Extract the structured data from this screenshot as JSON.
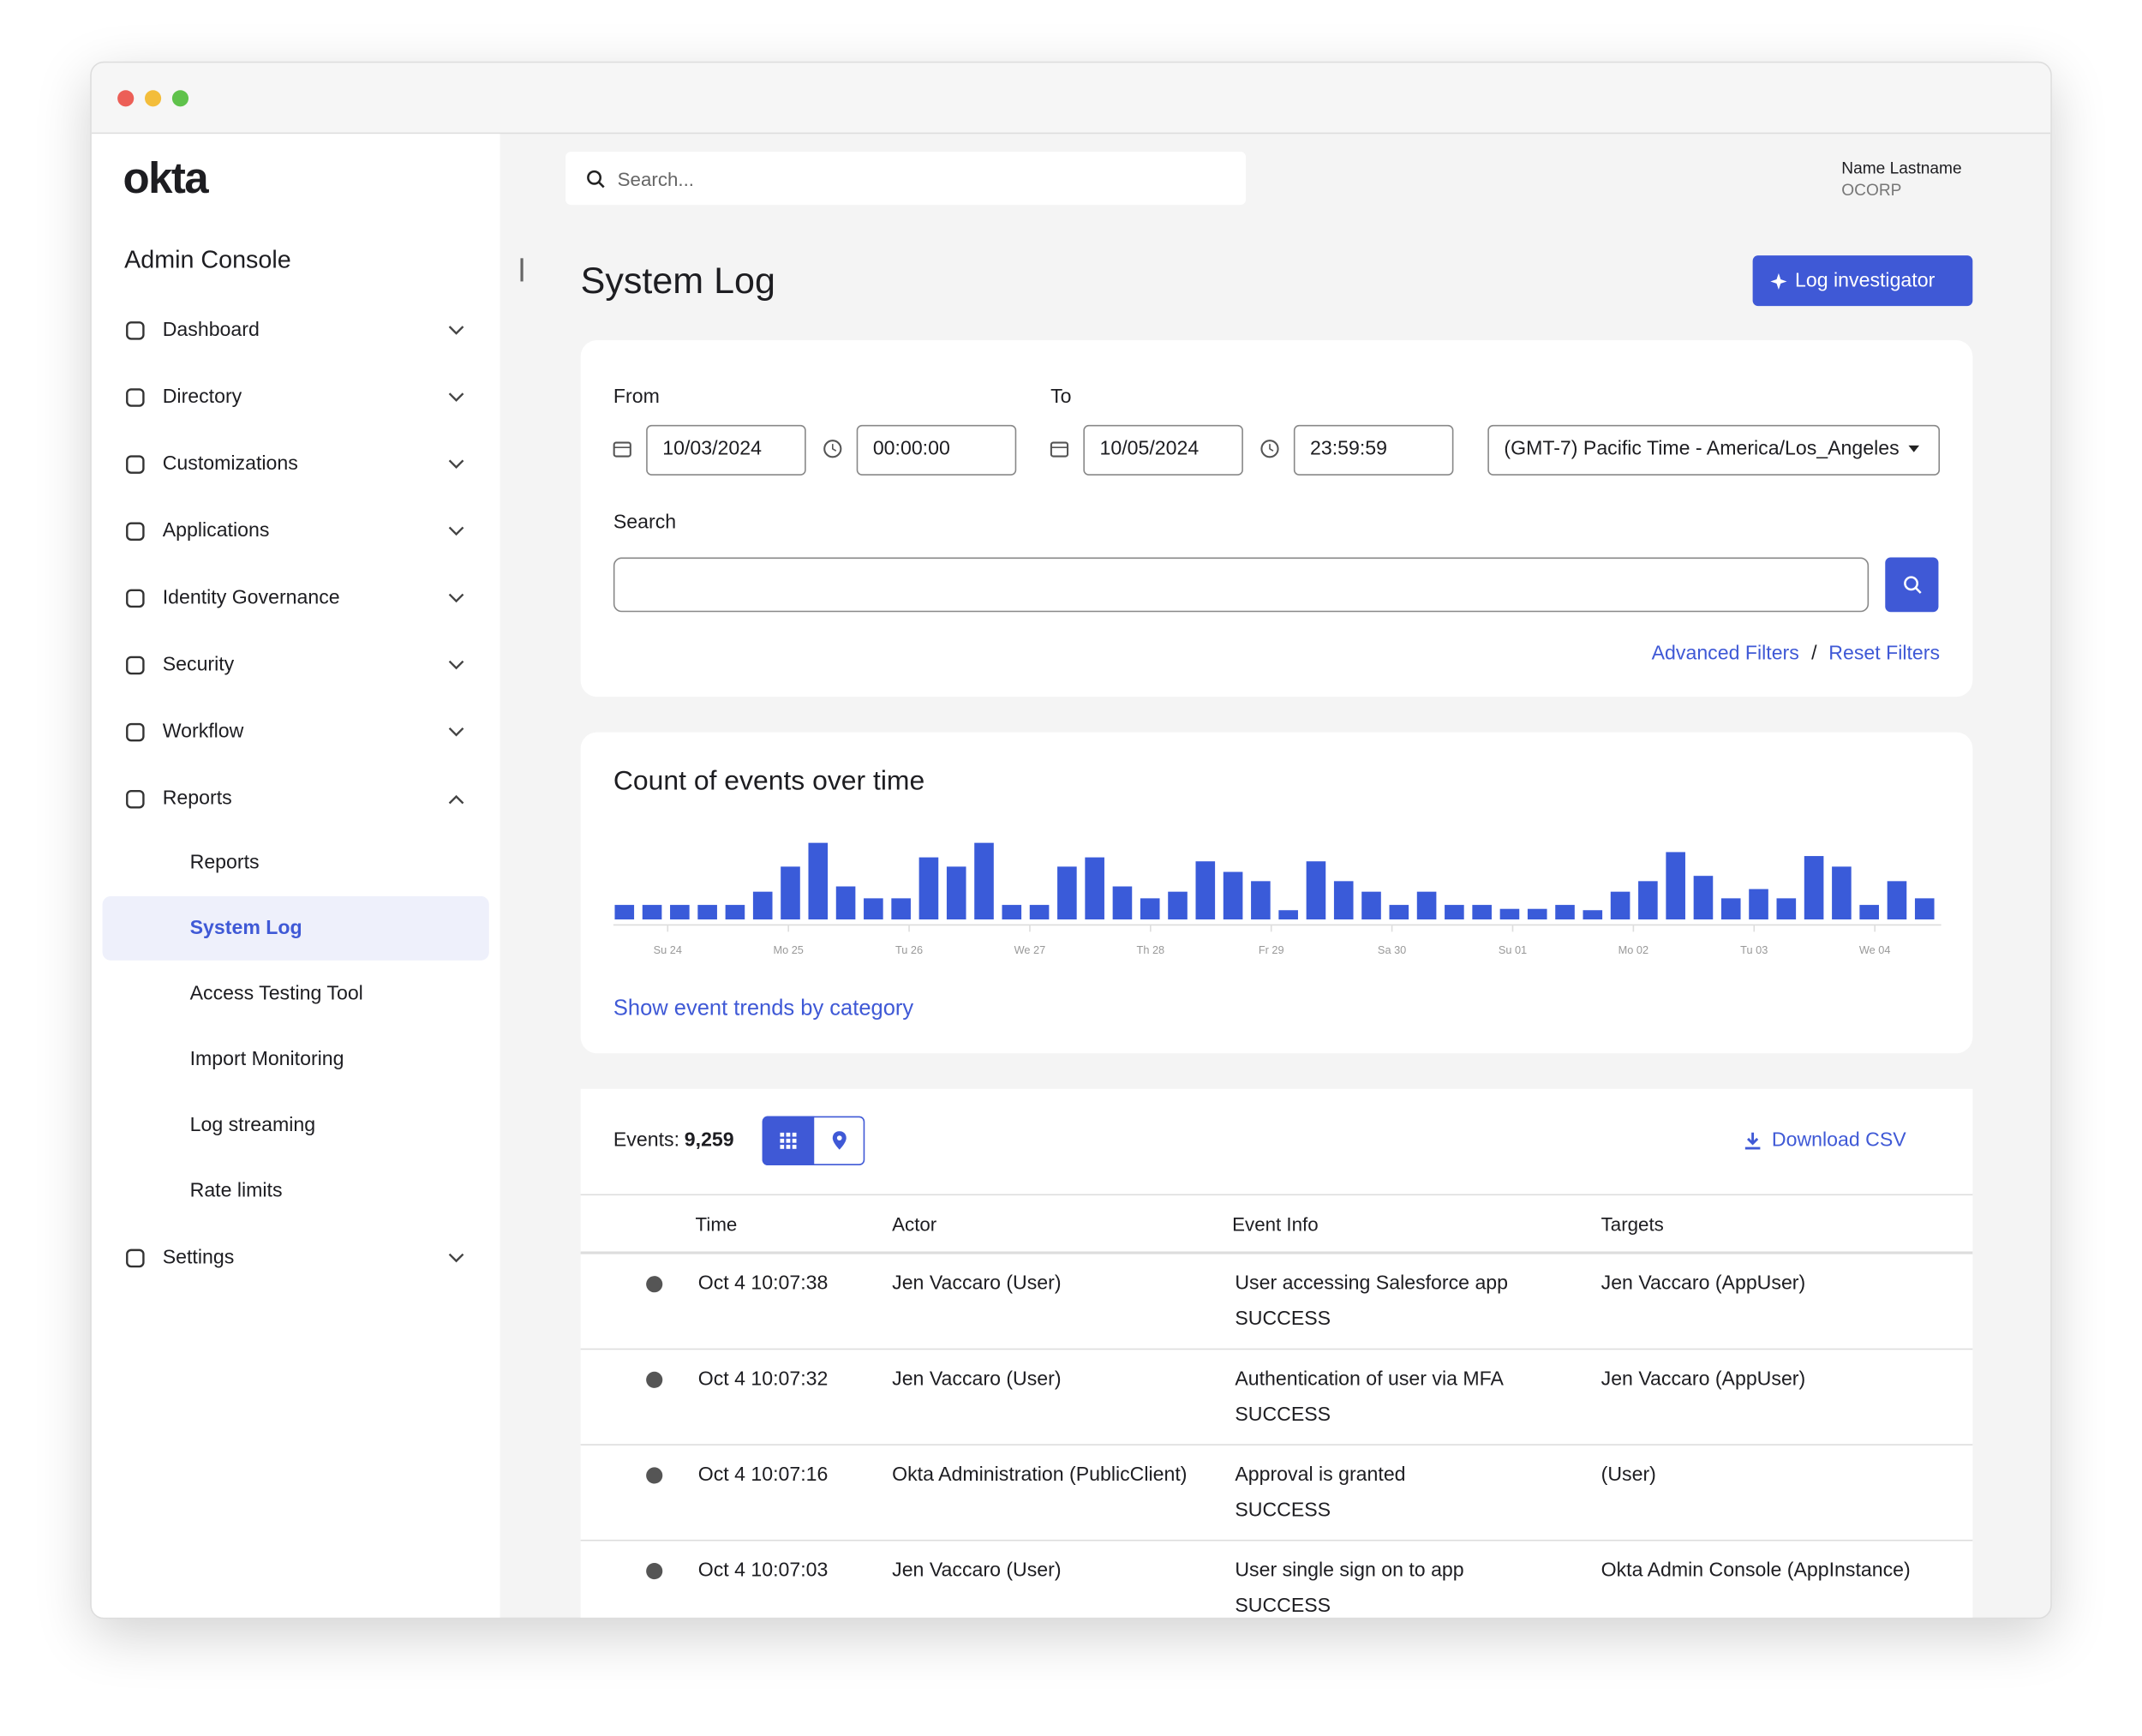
{
  "logo": "okta",
  "app_title": "Admin Console",
  "nav": [
    {
      "label": "Dashboard"
    },
    {
      "label": "Directory"
    },
    {
      "label": "Customizations"
    },
    {
      "label": "Applications"
    },
    {
      "label": "Identity Governance"
    },
    {
      "label": "Security"
    },
    {
      "label": "Workflow"
    },
    {
      "label": "Reports",
      "children": [
        {
          "label": "Reports"
        },
        {
          "label": "System Log",
          "active": true
        },
        {
          "label": "Access Testing Tool"
        },
        {
          "label": "Import Monitoring"
        },
        {
          "label": "Log streaming"
        },
        {
          "label": "Rate limits"
        }
      ]
    },
    {
      "label": "Settings"
    }
  ],
  "search_placeholder": "Search...",
  "user": {
    "name": "Name Lastname",
    "org": "OCORP"
  },
  "page_title": "System Log",
  "log_investigator": "Log investigator",
  "filters": {
    "from_label": "From",
    "to_label": "To",
    "from_date": "10/03/2024",
    "from_time": "00:00:00",
    "to_date": "10/05/2024",
    "to_time": "23:59:59",
    "timezone": "(GMT-7) Pacific Time - America/Los_Angeles",
    "search_label": "Search",
    "advanced": "Advanced Filters",
    "separator": "/",
    "reset": "Reset Filters"
  },
  "chart_data": {
    "type": "bar",
    "title": "Count of events over time",
    "color": "#3a5bd9",
    "ylim": [
      0,
      60
    ],
    "values": [
      11,
      11,
      11,
      11,
      11,
      21,
      40,
      58,
      25,
      16,
      16,
      47,
      40,
      58,
      11,
      11,
      40,
      47,
      25,
      16,
      21,
      44,
      36,
      29,
      7,
      44,
      29,
      21,
      11,
      21,
      11,
      11,
      8,
      8,
      11,
      7,
      21,
      29,
      51,
      33,
      16,
      23,
      16,
      48,
      40,
      11,
      29,
      16
    ],
    "x_labels": [
      "Su 24",
      "Mo 25",
      "Tu 26",
      "We 27",
      "Th 28",
      "Fr 29",
      "Sa 30",
      "Su 01",
      "Mo 02",
      "Tu 03",
      "We 04"
    ],
    "link": "Show event trends by category"
  },
  "events": {
    "label": "Events:",
    "count": "9,259",
    "download": "Download CSV",
    "columns": [
      "Time",
      "Actor",
      "Event Info",
      "Targets"
    ],
    "rows": [
      {
        "time": "Oct 4 10:07:38",
        "actor": "Jen Vaccaro (User)",
        "event": "User accessing Salesforce app",
        "outcome": "SUCCESS",
        "target": "Jen Vaccaro (AppUser)"
      },
      {
        "time": "Oct 4 10:07:32",
        "actor": "Jen Vaccaro (User)",
        "event": "Authentication of user via MFA",
        "outcome": "SUCCESS",
        "target": "Jen Vaccaro (AppUser)"
      },
      {
        "time": "Oct 4 10:07:16",
        "actor": "Okta Administration (PublicClient)",
        "event": "Approval is granted",
        "outcome": "SUCCESS",
        "target": "(User)"
      },
      {
        "time": "Oct 4 10:07:03",
        "actor": "Jen Vaccaro (User)",
        "event": "User single sign on to app",
        "outcome": "SUCCESS",
        "target": "Okta Admin Console (AppInstance)"
      }
    ]
  }
}
